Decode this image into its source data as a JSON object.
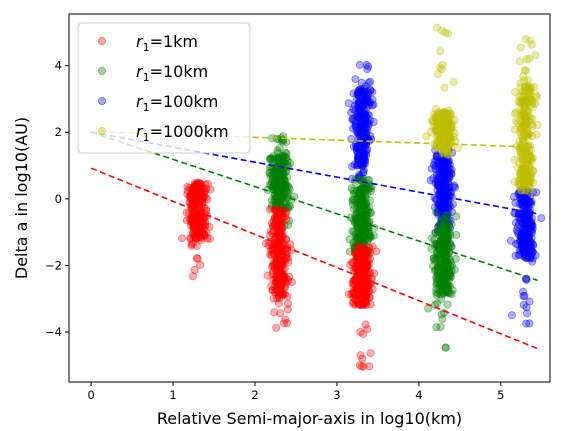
{
  "chart_data": {
    "type": "scatter",
    "title": "",
    "xlabel": "Relative Semi-major-axis in log10(km)",
    "ylabel": "Delta a in log10(AU)",
    "xlim": [
      -0.27,
      5.6
    ],
    "ylim": [
      -5.5,
      5.55
    ],
    "xticks": [
      0,
      1,
      2,
      3,
      4,
      5
    ],
    "yticks": [
      -4,
      -2,
      0,
      2,
      4
    ],
    "grid": false,
    "legend_position": "top-left",
    "legend_prefix": "r",
    "legend_subscript": "1",
    "cluster_x": [
      1.3,
      2.3,
      3.3,
      4.3,
      5.3
    ],
    "series": [
      {
        "name": "=1km",
        "color": "#ff0000",
        "clusters": [
          {
            "x": 1.3,
            "y_core": [
              -1.2,
              0.4
            ],
            "y_extent": [
              -2.4,
              0.5
            ]
          }
        ],
        "trend_line": {
          "x": [
            0,
            5.45
          ],
          "y": [
            0.92,
            -4.5
          ]
        }
      },
      {
        "name": "=10km",
        "color": "#008000",
        "clusters": [
          {
            "x": 2.3,
            "y_core": [
              -0.3,
              1.3
            ],
            "y_extent": [
              -1.4,
              1.9
            ]
          }
        ],
        "trend_line": {
          "x": [
            0,
            5.45
          ],
          "y": [
            2.0,
            -2.45
          ]
        }
      },
      {
        "name": "=100km",
        "color": "#0000ff",
        "clusters": [
          {
            "x": 3.3,
            "y_core": [
              1.0,
              3.3
            ],
            "y_extent": [
              0.6,
              4.05
            ]
          },
          {
            "x": 4.3,
            "y_core": [
              -1.0,
              1.2
            ],
            "y_extent": [
              -1.4,
              1.5
            ]
          },
          {
            "x": 5.3,
            "y_core": [
              -1.8,
              0.2
            ],
            "y_extent": [
              -3.85,
              0.3
            ]
          }
        ],
        "trend_line": {
          "x": [
            0,
            5.45
          ],
          "y": [
            2.0,
            -0.45
          ]
        }
      },
      {
        "name": "=1000km",
        "color": "#bfbf00",
        "clusters": [
          {
            "x": 4.3,
            "y_core": [
              1.5,
              2.6
            ],
            "y_extent": [
              1.3,
              5.15
            ]
          },
          {
            "x": 5.3,
            "y_core": [
              0.4,
              3.4
            ],
            "y_extent": [
              0.2,
              4.85
            ]
          }
        ],
        "trend_line": {
          "x": [
            0,
            5.45
          ],
          "y": [
            2.02,
            1.55
          ]
        }
      },
      {
        "name": "=10km",
        "color": "#008000",
        "clusters": [
          {
            "x": 3.3,
            "y_core": [
              -1.6,
              0.4
            ],
            "y_extent": [
              -1.8,
              0.6
            ]
          },
          {
            "x": 4.3,
            "y_core": [
              -2.9,
              -0.8
            ],
            "y_extent": [
              -4.55,
              -0.4
            ]
          }
        ],
        "trend_line": null,
        "legend_hidden": true
      },
      {
        "name": "=1km",
        "color": "#ff0000",
        "clusters": [
          {
            "x": 2.3,
            "y_core": [
              -3.0,
              -0.5
            ],
            "y_extent": [
              -3.9,
              -0.3
            ]
          },
          {
            "x": 3.3,
            "y_core": [
              -3.2,
              -1.6
            ],
            "y_extent": [
              -5.05,
              -1.4
            ]
          }
        ],
        "trend_line": null,
        "legend_hidden": true
      }
    ]
  }
}
